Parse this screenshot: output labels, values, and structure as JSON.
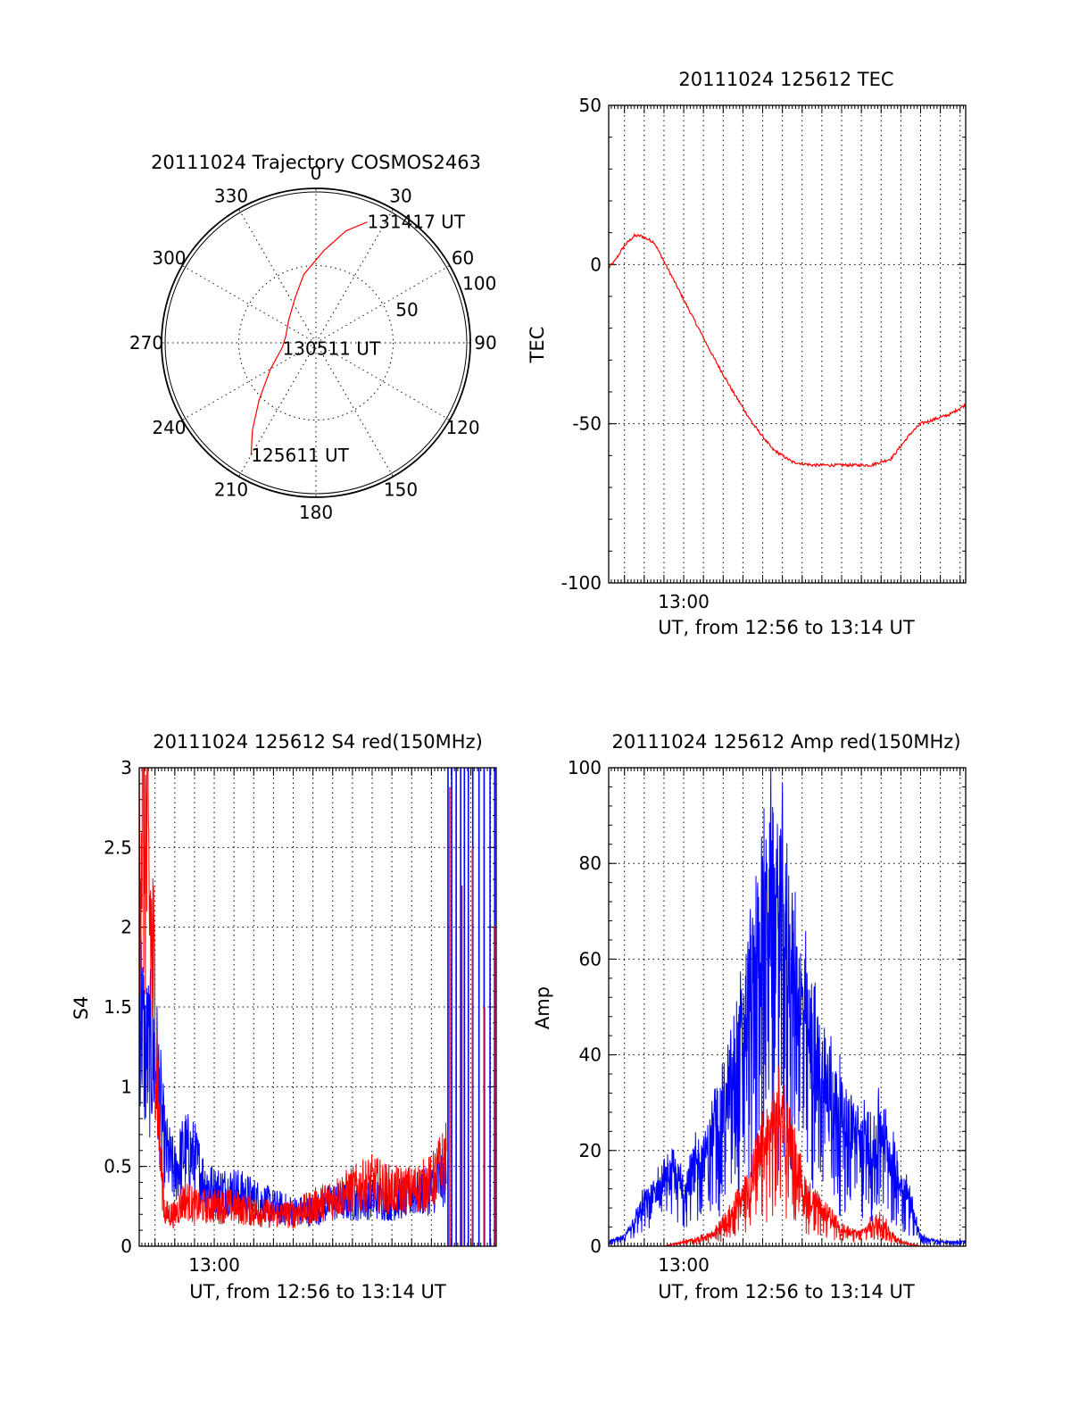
{
  "colors": {
    "red": "#ff0000",
    "blue": "#0000ff",
    "axes": "#000000"
  },
  "chart_data": [
    {
      "id": "trajectory",
      "type": "polar",
      "title": "20111024 Trajectory COSMOS2463",
      "azimuth_labels": [
        "0",
        "30",
        "60",
        "90",
        "120",
        "150",
        "180",
        "210",
        "240",
        "270",
        "300",
        "330"
      ],
      "radial_labels": [
        "50",
        "100"
      ],
      "radial_values": [
        50,
        100
      ],
      "ring_values": [
        50,
        100
      ],
      "rmax": 100,
      "trajectory": {
        "color": "red",
        "points": [
          {
            "az": 210,
            "el_offset": 84
          },
          {
            "az": 216,
            "el_offset": 70
          },
          {
            "az": 225,
            "el_offset": 52
          },
          {
            "az": 240,
            "el_offset": 34
          },
          {
            "az": 262,
            "el_offset": 22
          },
          {
            "az": 282,
            "el_offset": 20
          },
          {
            "az": 310,
            "el_offset": 23
          },
          {
            "az": 335,
            "el_offset": 32
          },
          {
            "az": 350,
            "el_offset": 45
          },
          {
            "az": 5,
            "el_offset": 60
          },
          {
            "az": 15,
            "el_offset": 75
          },
          {
            "az": 23,
            "el_offset": 85
          }
        ]
      },
      "annotations": [
        {
          "text": "131417 UT",
          "az": 23,
          "r": 85
        },
        {
          "text": "130511 UT",
          "az": 260,
          "r": 22
        },
        {
          "text": "125611 UT",
          "az": 210,
          "r": 84
        }
      ]
    },
    {
      "id": "tec",
      "type": "line",
      "title": "20111024 125612 TEC",
      "xlabel": "UT, from 12:56 to 13:14 UT",
      "ylabel": "TEC",
      "xlim": [
        "12:56:12",
        "13:14:17"
      ],
      "ylim": [
        -100,
        50
      ],
      "yticks": [
        -100,
        -50,
        0,
        50
      ],
      "xticklabels": [
        {
          "t": "13:00:00",
          "label": "13:00"
        }
      ],
      "series": [
        {
          "color": "red",
          "x": [
            "12:56:12",
            "12:56:30",
            "12:57:00",
            "12:57:30",
            "12:57:50",
            "12:58:30",
            "12:59:00",
            "12:59:40",
            "13:00:30",
            "13:01:30",
            "13:02:30",
            "13:03:30",
            "13:04:30",
            "13:05:30",
            "13:06:30",
            "13:07:30",
            "13:08:30",
            "13:09:30",
            "13:10:30",
            "13:11:00",
            "13:11:30",
            "13:12:00",
            "13:12:30",
            "13:13:00",
            "13:13:30",
            "13:14:17"
          ],
          "y": [
            -1,
            1,
            6,
            9,
            9,
            7,
            1,
            -7,
            -17,
            -29,
            -40,
            -50,
            -58,
            -62,
            -63,
            -63,
            -63,
            -63,
            -61,
            -57,
            -53,
            -50,
            -49,
            -48,
            -47,
            -44
          ]
        }
      ]
    },
    {
      "id": "s4",
      "type": "line",
      "title": "20111024 125612 S4 red(150MHz)",
      "xlabel": "UT, from 12:56 to 13:14 UT",
      "ylabel": "S4",
      "xlim": [
        "12:56:12",
        "13:14:17"
      ],
      "ylim": [
        0,
        3
      ],
      "yticks": [
        0,
        0.5,
        1,
        1.5,
        2,
        2.5,
        3
      ],
      "xticklabels": [
        {
          "t": "13:00:00",
          "label": "13:00"
        }
      ],
      "series": [
        {
          "color": "blue",
          "x": [
            "12:56:12",
            "12:56:30",
            "12:57:00",
            "12:57:15",
            "12:57:30",
            "12:58:00",
            "12:58:30",
            "12:59:00",
            "12:59:30",
            "13:00:00",
            "13:01:00",
            "13:02:00",
            "13:03:00",
            "13:04:00",
            "13:05:00",
            "13:06:00",
            "13:07:00",
            "13:08:00",
            "13:09:00",
            "13:10:00",
            "13:11:00",
            "13:11:45"
          ],
          "y": [
            1.6,
            1.2,
            1.2,
            0.9,
            0.6,
            0.45,
            0.6,
            0.55,
            0.4,
            0.35,
            0.35,
            0.3,
            0.25,
            0.22,
            0.22,
            0.28,
            0.28,
            0.3,
            0.28,
            0.32,
            0.35,
            0.45
          ]
        },
        {
          "color": "red",
          "x": [
            "12:56:12",
            "12:56:30",
            "12:57:00",
            "12:57:15",
            "12:57:30",
            "12:58:00",
            "12:58:30",
            "12:59:00",
            "12:59:30",
            "13:00:00",
            "13:01:00",
            "13:02:00",
            "13:03:00",
            "13:04:00",
            "13:05:00",
            "13:06:00",
            "13:07:00",
            "13:08:00",
            "13:09:00",
            "13:10:00",
            "13:11:00",
            "13:11:45"
          ],
          "y": [
            2.8,
            2.6,
            1.5,
            0.6,
            0.2,
            0.2,
            0.3,
            0.25,
            0.25,
            0.25,
            0.25,
            0.22,
            0.2,
            0.2,
            0.25,
            0.3,
            0.35,
            0.4,
            0.35,
            0.35,
            0.4,
            0.55
          ]
        }
      ],
      "saturated_region": {
        "from": "13:11:45",
        "to": "13:14:17",
        "color": "blue"
      }
    },
    {
      "id": "amp",
      "type": "line",
      "title": "20111024 125612 Amp red(150MHz)",
      "xlabel": "UT, from 12:56 to 13:14 UT",
      "ylabel": "Amp",
      "xlim": [
        "12:56:12",
        "13:14:17"
      ],
      "ylim": [
        0,
        100
      ],
      "yticks": [
        0,
        20,
        40,
        60,
        80,
        100
      ],
      "xticklabels": [
        {
          "t": "13:00:00",
          "label": "13:00"
        }
      ],
      "series": [
        {
          "color": "blue",
          "x": [
            "12:56:12",
            "12:57:00",
            "12:57:30",
            "12:58:00",
            "12:58:30",
            "12:59:00",
            "12:59:30",
            "13:00:00",
            "13:00:30",
            "13:01:00",
            "13:01:30",
            "13:02:00",
            "13:02:30",
            "13:03:00",
            "13:03:30",
            "13:04:00",
            "13:04:30",
            "13:05:00",
            "13:05:30",
            "13:06:00",
            "13:06:30",
            "13:07:00",
            "13:07:30",
            "13:08:00",
            "13:08:30",
            "13:09:00",
            "13:09:30",
            "13:10:00",
            "13:10:30",
            "13:11:00",
            "13:11:30",
            "13:12:00",
            "13:13:00",
            "13:14:17"
          ],
          "y": [
            1,
            2,
            6,
            10,
            12,
            15,
            16,
            14,
            18,
            20,
            26,
            30,
            38,
            48,
            60,
            72,
            80,
            75,
            62,
            55,
            45,
            40,
            35,
            30,
            28,
            25,
            22,
            28,
            20,
            15,
            10,
            2,
            1,
            1
          ]
        },
        {
          "color": "red",
          "x": [
            "12:56:12",
            "12:59:00",
            "13:00:00",
            "13:01:00",
            "13:01:30",
            "13:02:00",
            "13:02:30",
            "13:03:00",
            "13:03:30",
            "13:04:00",
            "13:04:30",
            "13:05:00",
            "13:05:30",
            "13:06:00",
            "13:06:30",
            "13:07:00",
            "13:07:30",
            "13:08:00",
            "13:08:30",
            "13:09:00",
            "13:09:30",
            "13:10:00",
            "13:10:30",
            "13:11:00",
            "13:12:00",
            "13:14:17"
          ],
          "y": [
            0,
            0,
            1,
            2,
            3,
            5,
            8,
            12,
            16,
            22,
            28,
            30,
            22,
            14,
            10,
            8,
            6,
            4,
            3,
            3,
            5,
            6,
            3,
            1,
            0,
            0
          ]
        }
      ]
    }
  ]
}
